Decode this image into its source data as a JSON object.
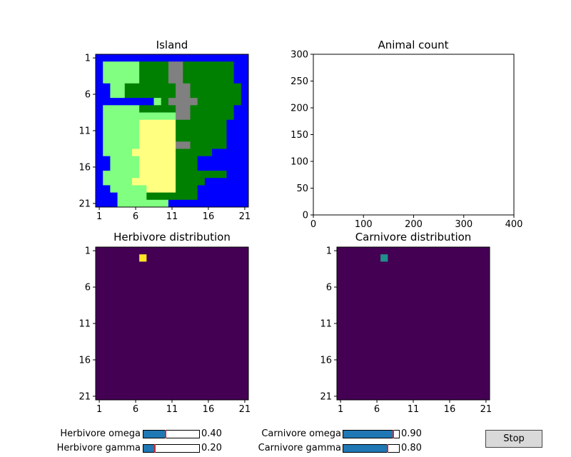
{
  "island": {
    "title": "Island",
    "x_ticks": [
      "1",
      "6",
      "11",
      "16",
      "21"
    ],
    "y_ticks": [
      "1",
      "6",
      "11",
      "16",
      "21"
    ],
    "colors": {
      "W": "#0000ff",
      "L": "#80ff80",
      "H": "#008000",
      "M": "#808080",
      "D": "#ffff80"
    },
    "map": [
      "WWWWWWWWWWWWWWWWWWWWW",
      "WLLLLLHHHHMMHHHHHHHWW",
      "WLLLLLHHHHMMHHHHHHHWW",
      "WLLLLLHHHHMMHHHHHHHWW",
      "WWLLHHHHHHHMMHHHHHHHW",
      "WWLLHHHHHHHMMHHHHHHHW",
      "WWWWWWWWLHMMMMHHHHHHW",
      "WLLLLLHHHHHMMHHHHHHWW",
      "WLLLLLLLLLLMMHHHHHHWW",
      "WLLLLLDDDDDHHHHHHHWWW",
      "WLLLLLDDDDDHHHHHHHWWW",
      "WLLLLLDDDDDHHHHHHHWWW",
      "WLLLLLDDDDDMMHHHHHWWW",
      "WLLLLDDDDDDHHHHHWWWWW",
      "WWLLLLDDDDDHHHWWWWWWW",
      "WWLLLLDDDDDHHHWWWWWWW",
      "WLLLLLDDDDDHHHHHHHWWW",
      "WLLLLDDDDDDHHHHWWWWWW",
      "WWLLLLLDDDDHHHWWWWWWW",
      "WWWLLLLHHHHHHHWWWWWWW",
      "WWWLLLLLLLWWWWWWWWWWW"
    ]
  },
  "animal_count": {
    "title": "Animal count",
    "x_ticks": [
      "0",
      "100",
      "200",
      "300",
      "400"
    ],
    "y_ticks": [
      "0",
      "50",
      "100",
      "150",
      "200",
      "250",
      "300"
    ]
  },
  "herbivore_dist": {
    "title": "Herbivore distribution",
    "x_ticks": [
      "1",
      "6",
      "11",
      "16",
      "21"
    ],
    "y_ticks": [
      "1",
      "6",
      "11",
      "16",
      "21"
    ],
    "background": "#440154",
    "cell": {
      "row": 2,
      "col": 7,
      "color": "#fde725"
    }
  },
  "carnivore_dist": {
    "title": "Carnivore distribution",
    "x_ticks": [
      "1",
      "6",
      "11",
      "16",
      "21"
    ],
    "y_ticks": [
      "1",
      "6",
      "11",
      "16",
      "21"
    ],
    "background": "#440154",
    "cell": {
      "row": 2,
      "col": 7,
      "color": "#21918c"
    }
  },
  "controls": {
    "herb_omega": {
      "label": "Herbivore omega",
      "value": "0.40",
      "fraction": 0.4
    },
    "herb_gamma": {
      "label": "Herbivore gamma",
      "value": "0.20",
      "fraction": 0.2
    },
    "carn_omega": {
      "label": "Carnivore omega",
      "value": "0.90",
      "fraction": 0.9
    },
    "carn_gamma": {
      "label": "Carnivore gamma",
      "value": "0.80",
      "fraction": 0.8
    },
    "stop_label": "Stop"
  }
}
